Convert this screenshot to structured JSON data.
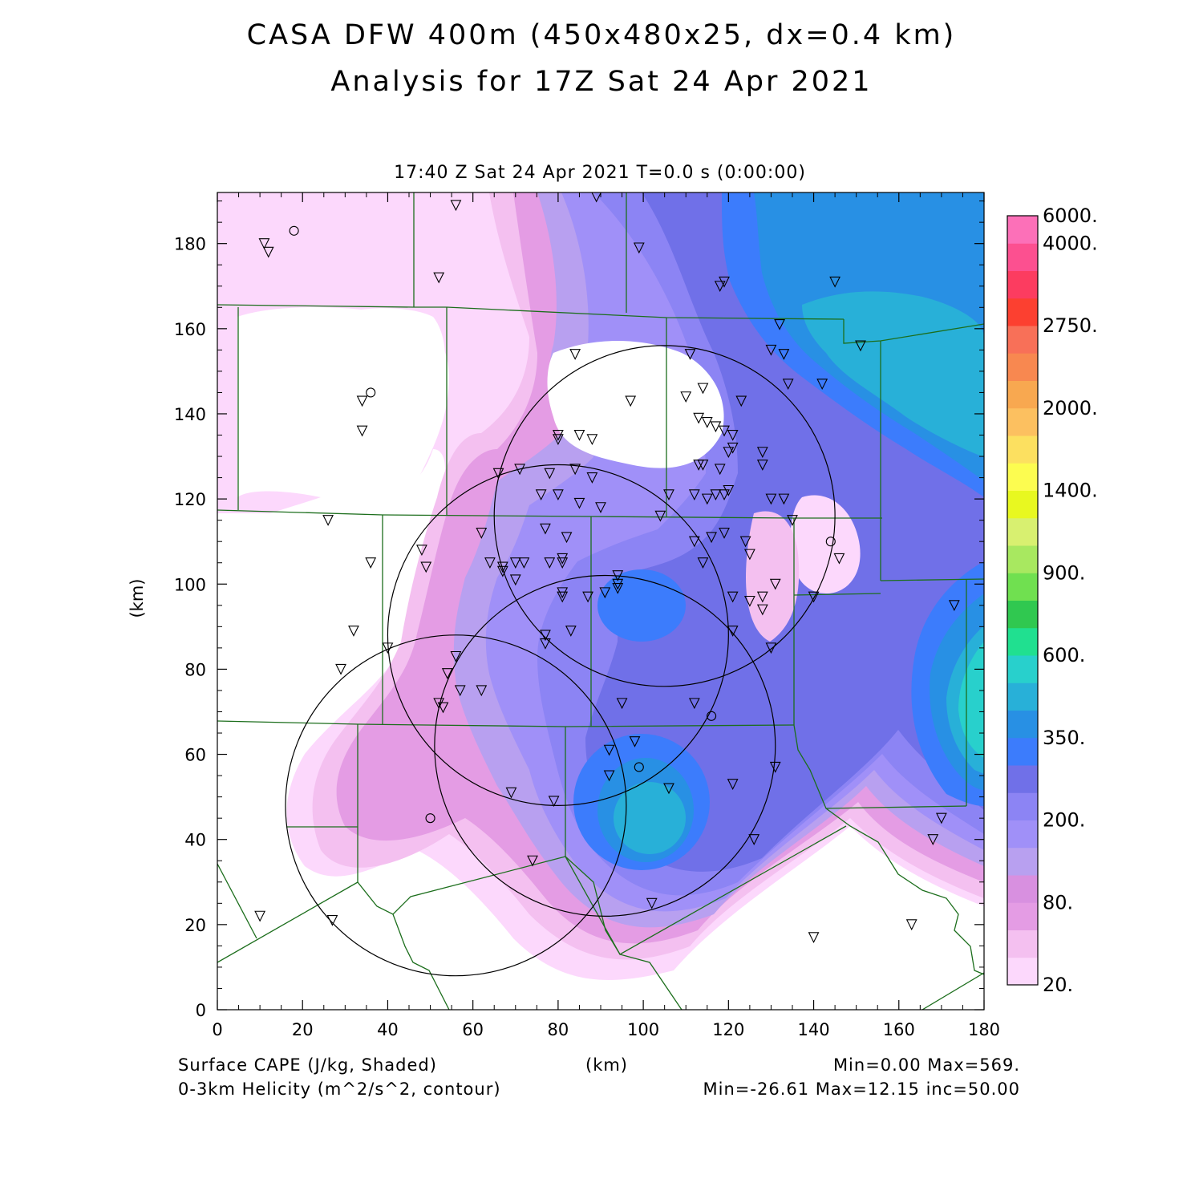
{
  "title_line1": "CASA DFW 400m (450x480x25, dx=0.4 km)",
  "title_line2": "Analysis for 17Z Sat 24 Apr 2021",
  "subtitle": "17:40 Z Sat 24 Apr 2021    T=0.0 s (0:00:00)",
  "footer": {
    "left1": "Surface CAPE (J/kg, Shaded)",
    "left2": "0-3km Helicity (m^2/s^2, contour)",
    "x_unit": "(km)",
    "right1": "Min=0.00 Max=569.",
    "right2": "Min=-26.61 Max=12.15 inc=50.00"
  },
  "axes": {
    "y_unit": "(km)",
    "x_ticks": [
      "0",
      "20",
      "40",
      "60",
      "80",
      "100",
      "120",
      "140",
      "160",
      "180"
    ],
    "y_ticks": [
      "0",
      "20",
      "40",
      "60",
      "80",
      "100",
      "120",
      "140",
      "160",
      "180"
    ],
    "xlim": [
      0,
      180
    ],
    "ylim": [
      0,
      192
    ]
  },
  "colorbar": {
    "colors": [
      "#fcd8fc",
      "#f4c0f0",
      "#e49ce4",
      "#d890e0",
      "#b8a0f0",
      "#a090f8",
      "#8c84f4",
      "#7070e8",
      "#3c7cfc",
      "#2890e4",
      "#28b0d8",
      "#28d0cc",
      "#20e090",
      "#30c850",
      "#70e050",
      "#a8e860",
      "#d8f070",
      "#e8f820",
      "#fcfc50",
      "#fce060",
      "#fcc060",
      "#f8a850",
      "#f88850",
      "#f87058",
      "#fc4030",
      "#fc3c60",
      "#fc5090",
      "#fc70b8"
    ],
    "labels": [
      {
        "text": "20.",
        "index": 0
      },
      {
        "text": "80.",
        "index": 3
      },
      {
        "text": "200.",
        "index": 6
      },
      {
        "text": "350.",
        "index": 9
      },
      {
        "text": "600.",
        "index": 12
      },
      {
        "text": "900.",
        "index": 15
      },
      {
        "text": "1400.",
        "index": 18
      },
      {
        "text": "2000.",
        "index": 21
      },
      {
        "text": "2750.",
        "index": 24
      },
      {
        "text": "4000.",
        "index": 27
      },
      {
        "text": "6000.",
        "index": 28
      }
    ]
  },
  "colors": {
    "boundary": "#1c6e1c",
    "contour": "#000000"
  },
  "radar_circles_km": [
    {
      "cx": 105,
      "cy": 116,
      "r": 40
    },
    {
      "cx": 80,
      "cy": 88,
      "r": 40
    },
    {
      "cx": 91,
      "cy": 62,
      "r": 40
    },
    {
      "cx": 56,
      "cy": 48,
      "r": 40
    }
  ],
  "station_circles_km": [
    [
      18,
      183
    ],
    [
      36,
      145
    ],
    [
      144,
      110
    ],
    [
      99,
      57
    ],
    [
      116,
      69
    ],
    [
      50,
      45
    ]
  ],
  "stations_km": [
    [
      11,
      180
    ],
    [
      12,
      178
    ],
    [
      56,
      189
    ],
    [
      52,
      172
    ],
    [
      89,
      191
    ],
    [
      99,
      179
    ],
    [
      118,
      170
    ],
    [
      119,
      171
    ],
    [
      145,
      171
    ],
    [
      151,
      156
    ],
    [
      132,
      161
    ],
    [
      130,
      155
    ],
    [
      133,
      154
    ],
    [
      134,
      147
    ],
    [
      142,
      147
    ],
    [
      111,
      154
    ],
    [
      84,
      154
    ],
    [
      97,
      143
    ],
    [
      110,
      144
    ],
    [
      114,
      146
    ],
    [
      123,
      143
    ],
    [
      34,
      143
    ],
    [
      34,
      136
    ],
    [
      80,
      135
    ],
    [
      80,
      134
    ],
    [
      85,
      135
    ],
    [
      88,
      134
    ],
    [
      113,
      139
    ],
    [
      115,
      138
    ],
    [
      117,
      137
    ],
    [
      119,
      136
    ],
    [
      121,
      135
    ],
    [
      121,
      132
    ],
    [
      120,
      131
    ],
    [
      128,
      131
    ],
    [
      128,
      128
    ],
    [
      114,
      128
    ],
    [
      113,
      128
    ],
    [
      118,
      127
    ],
    [
      66,
      126
    ],
    [
      71,
      127
    ],
    [
      78,
      126
    ],
    [
      84,
      127
    ],
    [
      88,
      125
    ],
    [
      76,
      121
    ],
    [
      80,
      121
    ],
    [
      85,
      119
    ],
    [
      90,
      118
    ],
    [
      106,
      121
    ],
    [
      112,
      121
    ],
    [
      115,
      120
    ],
    [
      117,
      121
    ],
    [
      119,
      121
    ],
    [
      120,
      122
    ],
    [
      130,
      120
    ],
    [
      133,
      120
    ],
    [
      104,
      116
    ],
    [
      135,
      115
    ],
    [
      26,
      115
    ],
    [
      62,
      112
    ],
    [
      77,
      113
    ],
    [
      82,
      111
    ],
    [
      112,
      110
    ],
    [
      116,
      111
    ],
    [
      119,
      112
    ],
    [
      124,
      110
    ],
    [
      125,
      107
    ],
    [
      36,
      105
    ],
    [
      48,
      108
    ],
    [
      49,
      104
    ],
    [
      64,
      105
    ],
    [
      67,
      104
    ],
    [
      67,
      103
    ],
    [
      70,
      105
    ],
    [
      72,
      105
    ],
    [
      70,
      101
    ],
    [
      78,
      105
    ],
    [
      81,
      105
    ],
    [
      81,
      106
    ],
    [
      94,
      102
    ],
    [
      94,
      100
    ],
    [
      94,
      99
    ],
    [
      91,
      98
    ],
    [
      87,
      97
    ],
    [
      81,
      98
    ],
    [
      81,
      97
    ],
    [
      114,
      105
    ],
    [
      121,
      97
    ],
    [
      125,
      96
    ],
    [
      128,
      97
    ],
    [
      131,
      100
    ],
    [
      128,
      94
    ],
    [
      140,
      97
    ],
    [
      146,
      106
    ],
    [
      32,
      89
    ],
    [
      40,
      85
    ],
    [
      29,
      80
    ],
    [
      56,
      83
    ],
    [
      54,
      79
    ],
    [
      57,
      75
    ],
    [
      62,
      75
    ],
    [
      52,
      72
    ],
    [
      53,
      71
    ],
    [
      77,
      88
    ],
    [
      77,
      86
    ],
    [
      83,
      89
    ],
    [
      121,
      89
    ],
    [
      130,
      85
    ],
    [
      95,
      72
    ],
    [
      112,
      72
    ],
    [
      98,
      63
    ],
    [
      92,
      61
    ],
    [
      92,
      55
    ],
    [
      131,
      57
    ],
    [
      69,
      51
    ],
    [
      79,
      49
    ],
    [
      106,
      52
    ],
    [
      121,
      53
    ],
    [
      126,
      40
    ],
    [
      74,
      35
    ],
    [
      102,
      25
    ],
    [
      10,
      22
    ],
    [
      27,
      21
    ],
    [
      140,
      17
    ],
    [
      163,
      20
    ],
    [
      168,
      40
    ],
    [
      170,
      45
    ],
    [
      173,
      95
    ]
  ]
}
